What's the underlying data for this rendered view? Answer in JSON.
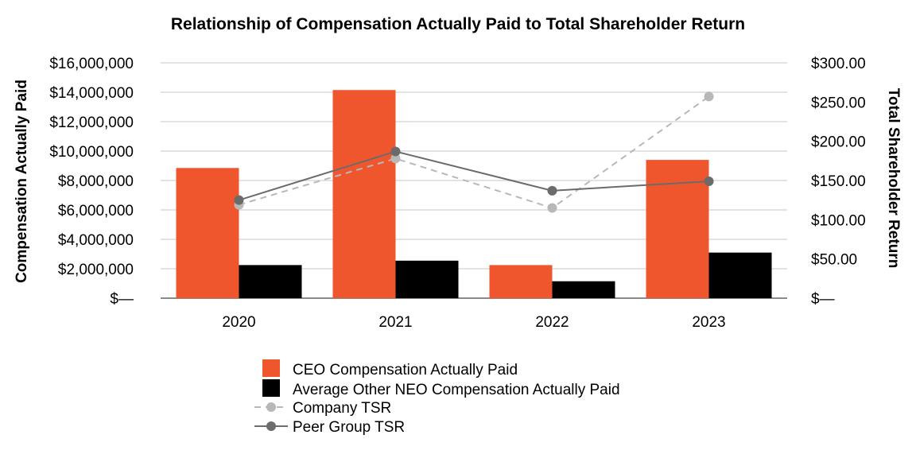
{
  "chart_data": {
    "type": "bar",
    "title": "Relationship of Compensation Actually Paid to Total Shareholder Return",
    "categories": [
      "2020",
      "2021",
      "2022",
      "2023"
    ],
    "ylabel": "Compensation Actually Paid",
    "y2label": "Total Shareholder Return",
    "ylim": [
      0,
      16000000
    ],
    "y2lim": [
      0,
      300
    ],
    "yticks": [
      {
        "value": 0,
        "label": "$—"
      },
      {
        "value": 2000000,
        "label": "$2,000,000"
      },
      {
        "value": 4000000,
        "label": "$4,000,000"
      },
      {
        "value": 6000000,
        "label": "$6,000,000"
      },
      {
        "value": 8000000,
        "label": "$8,000,000"
      },
      {
        "value": 10000000,
        "label": "$10,000,000"
      },
      {
        "value": 12000000,
        "label": "$12,000,000"
      },
      {
        "value": 14000000,
        "label": "$14,000,000"
      },
      {
        "value": 16000000,
        "label": "$16,000,000"
      }
    ],
    "y2ticks": [
      {
        "value": 0,
        "label": "$—"
      },
      {
        "value": 50,
        "label": "$50.00"
      },
      {
        "value": 100,
        "label": "$100.00"
      },
      {
        "value": 150,
        "label": "$150.00"
      },
      {
        "value": 200,
        "label": "$200.00"
      },
      {
        "value": 250,
        "label": "$250.00"
      },
      {
        "value": 300,
        "label": "$300.00"
      }
    ],
    "grid": true,
    "legend_position": "bottom",
    "bar_series": [
      {
        "name": "CEO Compensation Actually Paid",
        "color": "#f0562d",
        "values": [
          8850000,
          14150000,
          2250000,
          9400000
        ]
      },
      {
        "name": "Average Other NEO Compensation Actually Paid",
        "color": "#000000",
        "values": [
          2250000,
          2550000,
          1150000,
          3100000
        ]
      }
    ],
    "line_series": [
      {
        "name": "Company TSR",
        "color": "#b8b8b8",
        "style": "dashed",
        "values": [
          119,
          178,
          115,
          257
        ]
      },
      {
        "name": "Peer Group TSR",
        "color": "#6b6b6b",
        "style": "solid",
        "values": [
          125,
          187,
          137,
          149
        ]
      }
    ]
  }
}
